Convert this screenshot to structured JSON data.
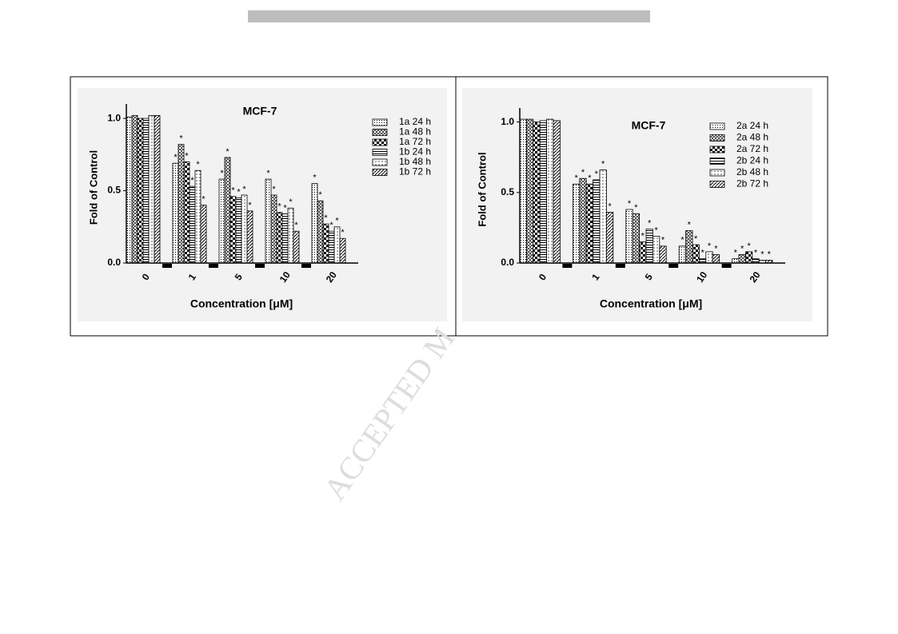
{
  "watermark": "ACCEPTED M",
  "chart_data": [
    {
      "type": "bar",
      "title": "MCF-7",
      "xlabel": "Concentration [μM]",
      "ylabel": "Fold of Control",
      "categories": [
        "0",
        "1",
        "5",
        "10",
        "20"
      ],
      "ylim": [
        0,
        1.1
      ],
      "yticks": [
        {
          "value": 0,
          "label": "0.0"
        },
        0.5,
        {
          "value": 1,
          "label": "1.0"
        }
      ],
      "significance_label": "*",
      "series": [
        {
          "name": "1a 24 h",
          "color": "#000000",
          "pattern": "dots",
          "values": [
            1.01,
            0.69,
            0.58,
            0.58,
            0.55
          ],
          "significant": [
            false,
            true,
            true,
            true,
            true
          ]
        },
        {
          "name": "1a 48 h",
          "color": "#000000",
          "pattern": "cross",
          "values": [
            1.02,
            0.82,
            0.73,
            0.47,
            0.43
          ],
          "significant": [
            false,
            true,
            true,
            true,
            true
          ]
        },
        {
          "name": "1a 72 h",
          "color": "#000000",
          "pattern": "check",
          "values": [
            1.0,
            0.7,
            0.46,
            0.35,
            0.27
          ],
          "significant": [
            false,
            true,
            true,
            true,
            true
          ]
        },
        {
          "name": "1b 24 h",
          "color": "#000000",
          "pattern": "hline",
          "values": [
            1.0,
            0.53,
            0.45,
            0.34,
            0.22
          ],
          "significant": [
            false,
            true,
            true,
            true,
            true
          ]
        },
        {
          "name": "1b 48 h",
          "color": "#000000",
          "pattern": "dot2",
          "values": [
            1.02,
            0.64,
            0.47,
            0.38,
            0.25
          ],
          "significant": [
            false,
            true,
            true,
            true,
            true
          ]
        },
        {
          "name": "1b 72 h",
          "color": "#000000",
          "pattern": "diag",
          "values": [
            1.02,
            0.4,
            0.36,
            0.22,
            0.17
          ],
          "significant": [
            false,
            true,
            true,
            true,
            true
          ]
        }
      ]
    },
    {
      "type": "bar",
      "title": "MCF-7",
      "xlabel": "Concentration [μM]",
      "ylabel": "Fold of Control",
      "categories": [
        "0",
        "1",
        "5",
        "10",
        "20"
      ],
      "ylim": [
        0,
        1.1
      ],
      "yticks": [
        {
          "value": 0,
          "label": "0.0"
        },
        0.5,
        {
          "value": 1,
          "label": "1.0"
        }
      ],
      "significance_label": "*",
      "series": [
        {
          "name": "2a 24 h",
          "color": "#000000",
          "pattern": "dots",
          "values": [
            1.02,
            0.56,
            0.38,
            0.12,
            0.03
          ],
          "significant": [
            false,
            true,
            true,
            true,
            true
          ]
        },
        {
          "name": "2a 48 h",
          "color": "#000000",
          "pattern": "cross",
          "values": [
            1.02,
            0.6,
            0.35,
            0.23,
            0.06
          ],
          "significant": [
            false,
            true,
            true,
            true,
            true
          ]
        },
        {
          "name": "2a 72 h",
          "color": "#000000",
          "pattern": "check",
          "values": [
            1.0,
            0.56,
            0.15,
            0.13,
            0.08
          ],
          "significant": [
            false,
            true,
            true,
            true,
            true
          ]
        },
        {
          "name": "2b 24 h",
          "color": "#000000",
          "pattern": "hline",
          "values": [
            1.01,
            0.59,
            0.24,
            0.03,
            0.03
          ],
          "significant": [
            false,
            true,
            true,
            true,
            true
          ]
        },
        {
          "name": "2b 48 h",
          "color": "#000000",
          "pattern": "dot2",
          "values": [
            1.02,
            0.66,
            0.19,
            0.08,
            0.02
          ],
          "significant": [
            false,
            true,
            true,
            true,
            true
          ]
        },
        {
          "name": "2b 72 h",
          "color": "#000000",
          "pattern": "diag",
          "values": [
            1.01,
            0.36,
            0.12,
            0.06,
            0.02
          ],
          "significant": [
            false,
            true,
            true,
            true,
            true
          ]
        }
      ]
    }
  ]
}
